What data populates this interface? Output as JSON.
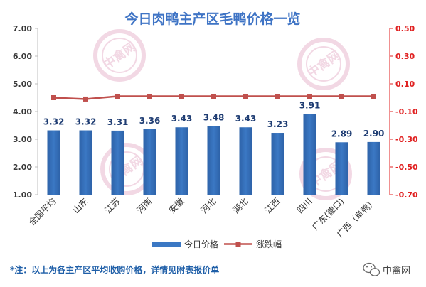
{
  "chart_data": {
    "type": "bar",
    "title": "今日肉鸭主产区毛鸭价格一览",
    "categories": [
      "全国平均",
      "山东",
      "江苏",
      "河南",
      "安徽",
      "河北",
      "湖北",
      "江西",
      "四川",
      "广东(德口)",
      "广西（阜鸭）"
    ],
    "series": [
      {
        "name": "今日价格",
        "type": "bar",
        "axis": "left",
        "color": "#3b78c4",
        "values": [
          3.32,
          3.32,
          3.31,
          3.36,
          3.43,
          3.48,
          3.43,
          3.23,
          3.91,
          2.89,
          2.9
        ],
        "labels": [
          "3.32",
          "3.32",
          "3.31",
          "3.36",
          "3.43",
          "3.48",
          "3.43",
          "3.23",
          "3.91",
          "2.89",
          "2.90"
        ]
      },
      {
        "name": "涨跌幅",
        "type": "line",
        "axis": "right",
        "color": "#c0504d",
        "values": [
          0.0,
          -0.01,
          0.01,
          0.01,
          0.01,
          0.01,
          0.01,
          0.01,
          0.01,
          0.01,
          0.01
        ]
      }
    ],
    "y_left": {
      "min": 1.0,
      "max": 7.0,
      "step": 1.0,
      "ticks": [
        "1.00",
        "2.00",
        "3.00",
        "4.00",
        "5.00",
        "6.00",
        "7.00"
      ]
    },
    "y_right": {
      "min": -0.7,
      "max": 0.5,
      "step": 0.2,
      "ticks": [
        "-0.70",
        "-0.50",
        "-0.30",
        "-0.10",
        "0.10",
        "0.30",
        "0.50"
      ],
      "color": "#e02020"
    },
    "grid": false,
    "legend_position": "bottom"
  },
  "note": "*注：以上为各主产区平均收购价格，详情见附表报价单",
  "watermark_text": "中禽网",
  "brand": {
    "name": "中禽网",
    "icon": "wechat-icon"
  },
  "colors": {
    "title": "#3f74c5",
    "right_axis": "#e02020",
    "note": "#1f5fa8",
    "watermark": "#e8b9cf"
  }
}
